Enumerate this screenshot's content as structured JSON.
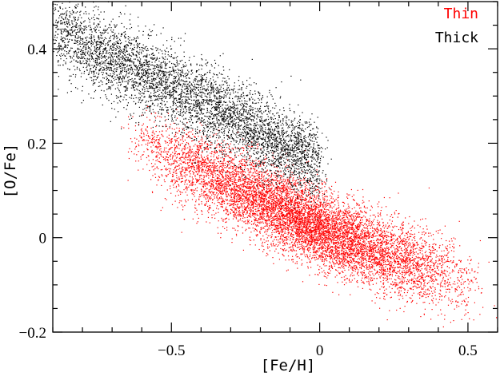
{
  "chart_data": {
    "type": "scatter",
    "xlabel": "[Fe/H]",
    "ylabel": "[O/Fe]",
    "xlim": [
      -0.9,
      0.6
    ],
    "ylim": [
      -0.2,
      0.5
    ],
    "xticks": [
      -0.5,
      0,
      0.5
    ],
    "xtick_labels": [
      "−0.5",
      "0",
      "0.5"
    ],
    "yticks": [
      -0.2,
      0,
      0.2,
      0.4
    ],
    "ytick_labels": [
      "−0.2",
      "0",
      "0.2",
      "0.4"
    ],
    "grid": false,
    "legend_position": "top-right",
    "series": [
      {
        "name": "Thin",
        "color": "#ff0000",
        "fe_h_range": [
          -0.65,
          0.55
        ],
        "trend": [
          {
            "x": -0.6,
            "y": 0.2
          },
          {
            "x": -0.4,
            "y": 0.14
          },
          {
            "x": -0.2,
            "y": 0.08
          },
          {
            "x": 0.0,
            "y": 0.02
          },
          {
            "x": 0.2,
            "y": -0.03
          },
          {
            "x": 0.4,
            "y": -0.07
          },
          {
            "x": 0.55,
            "y": -0.11
          }
        ]
      },
      {
        "name": "Thick",
        "color": "#000000",
        "fe_h_range": [
          -0.9,
          0.0
        ],
        "trend": [
          {
            "x": -0.85,
            "y": 0.43
          },
          {
            "x": -0.7,
            "y": 0.38
          },
          {
            "x": -0.5,
            "y": 0.32
          },
          {
            "x": -0.3,
            "y": 0.26
          },
          {
            "x": -0.15,
            "y": 0.2
          },
          {
            "x": -0.02,
            "y": 0.16
          }
        ]
      }
    ]
  }
}
